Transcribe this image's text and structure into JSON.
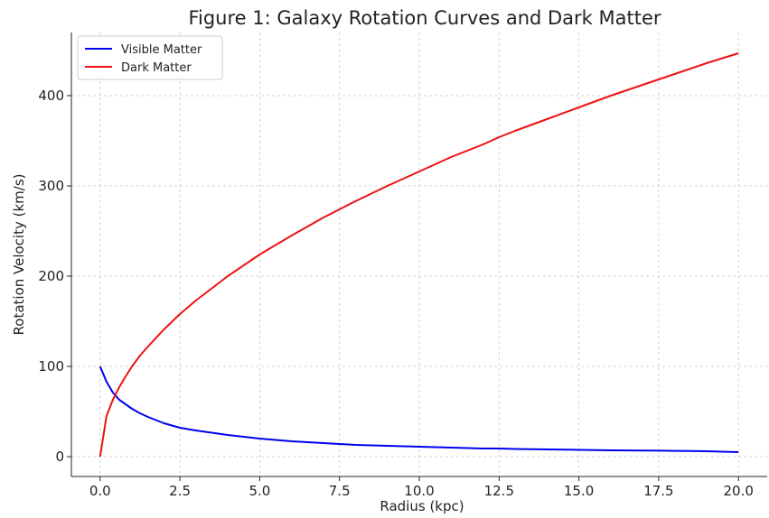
{
  "chart_data": {
    "type": "line",
    "title": "Figure 1: Galaxy Rotation Curves and Dark Matter",
    "xlabel": "Radius (kpc)",
    "ylabel": "Rotation Velocity (km/s)",
    "xlim": [
      -0.9,
      20.9
    ],
    "ylim": [
      -22,
      470
    ],
    "xticks": [
      0,
      2.5,
      5,
      7.5,
      10,
      12.5,
      15,
      17.5,
      20
    ],
    "xtick_labels": [
      "0.0",
      "2.5",
      "5.0",
      "7.5",
      "10.0",
      "12.5",
      "15.0",
      "17.5",
      "20.0"
    ],
    "yticks": [
      0,
      100,
      200,
      300,
      400
    ],
    "ytick_labels": [
      "0",
      "100",
      "200",
      "300",
      "400"
    ],
    "grid": true,
    "legend_position": "top-left",
    "x": [
      0.0,
      0.2,
      0.4,
      0.6,
      0.8,
      1.0,
      1.25,
      1.5,
      2.0,
      2.5,
      3.0,
      4.0,
      5.0,
      6.0,
      7.0,
      7.5,
      8.0,
      9.0,
      10.0,
      11.0,
      12.0,
      12.5,
      13.0,
      14.0,
      15.0,
      16.0,
      17.0,
      17.5,
      18.0,
      19.0,
      20.0
    ],
    "series": [
      {
        "name": "Visible Matter",
        "color": "#0000ee",
        "values": [
          100,
          83,
          71,
          63,
          58,
          53,
          48,
          44,
          37,
          32,
          29,
          24,
          20,
          17,
          15,
          14,
          13,
          12,
          11,
          10,
          9,
          9,
          8.5,
          8,
          7.5,
          7,
          6.8,
          6.6,
          6.4,
          6,
          5
        ]
      },
      {
        "name": "Dark Matter",
        "color": "#ee1111",
        "values": [
          0,
          45,
          63,
          77,
          89,
          100,
          112,
          122,
          141,
          158,
          173,
          200,
          224,
          245,
          265,
          274,
          283,
          300,
          316,
          332,
          346,
          354,
          361,
          374,
          387,
          400,
          412,
          418,
          424,
          436,
          447
        ]
      }
    ]
  }
}
